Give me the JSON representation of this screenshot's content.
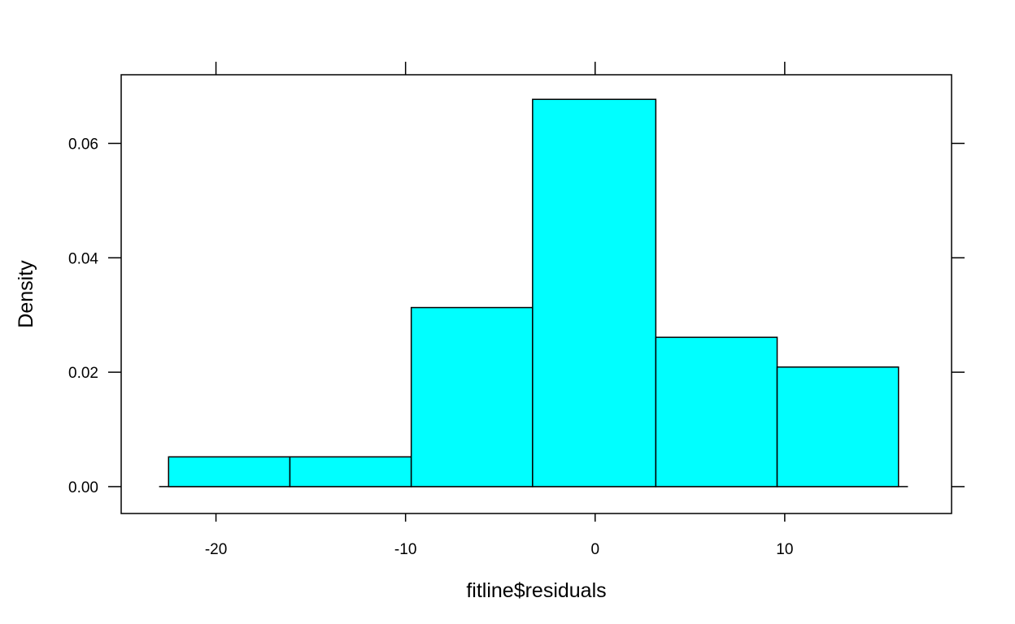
{
  "chart_data": {
    "type": "bar",
    "subtype": "histogram",
    "title": "",
    "xlabel": "fitline$residuals",
    "ylabel": "Density",
    "bins": [
      {
        "start": -22.5,
        "end": -16.1,
        "density": 0.0052
      },
      {
        "start": -16.1,
        "end": -9.7,
        "density": 0.0052
      },
      {
        "start": -9.7,
        "end": -3.3,
        "density": 0.0313
      },
      {
        "start": -3.3,
        "end": 3.2,
        "density": 0.0677
      },
      {
        "start": 3.2,
        "end": 9.6,
        "density": 0.0261
      },
      {
        "start": 9.6,
        "end": 16.0,
        "density": 0.0209
      }
    ],
    "xlim": [
      -25,
      18.8
    ],
    "ylim": [
      -0.0047,
      0.072
    ],
    "xticks": [
      {
        "value": -20,
        "label": "-20"
      },
      {
        "value": -10,
        "label": "-10"
      },
      {
        "value": 0,
        "label": "0"
      },
      {
        "value": 10,
        "label": "10"
      }
    ],
    "yticks": [
      {
        "value": 0,
        "label": "0.00"
      },
      {
        "value": 0.02,
        "label": "0.02"
      },
      {
        "value": 0.04,
        "label": "0.04"
      },
      {
        "value": 0.06,
        "label": "0.06"
      }
    ],
    "baseline": {
      "from": -23,
      "to": 16.5
    },
    "grid": false,
    "bar_color": "#00FFFF",
    "edge_color": "#000000"
  }
}
